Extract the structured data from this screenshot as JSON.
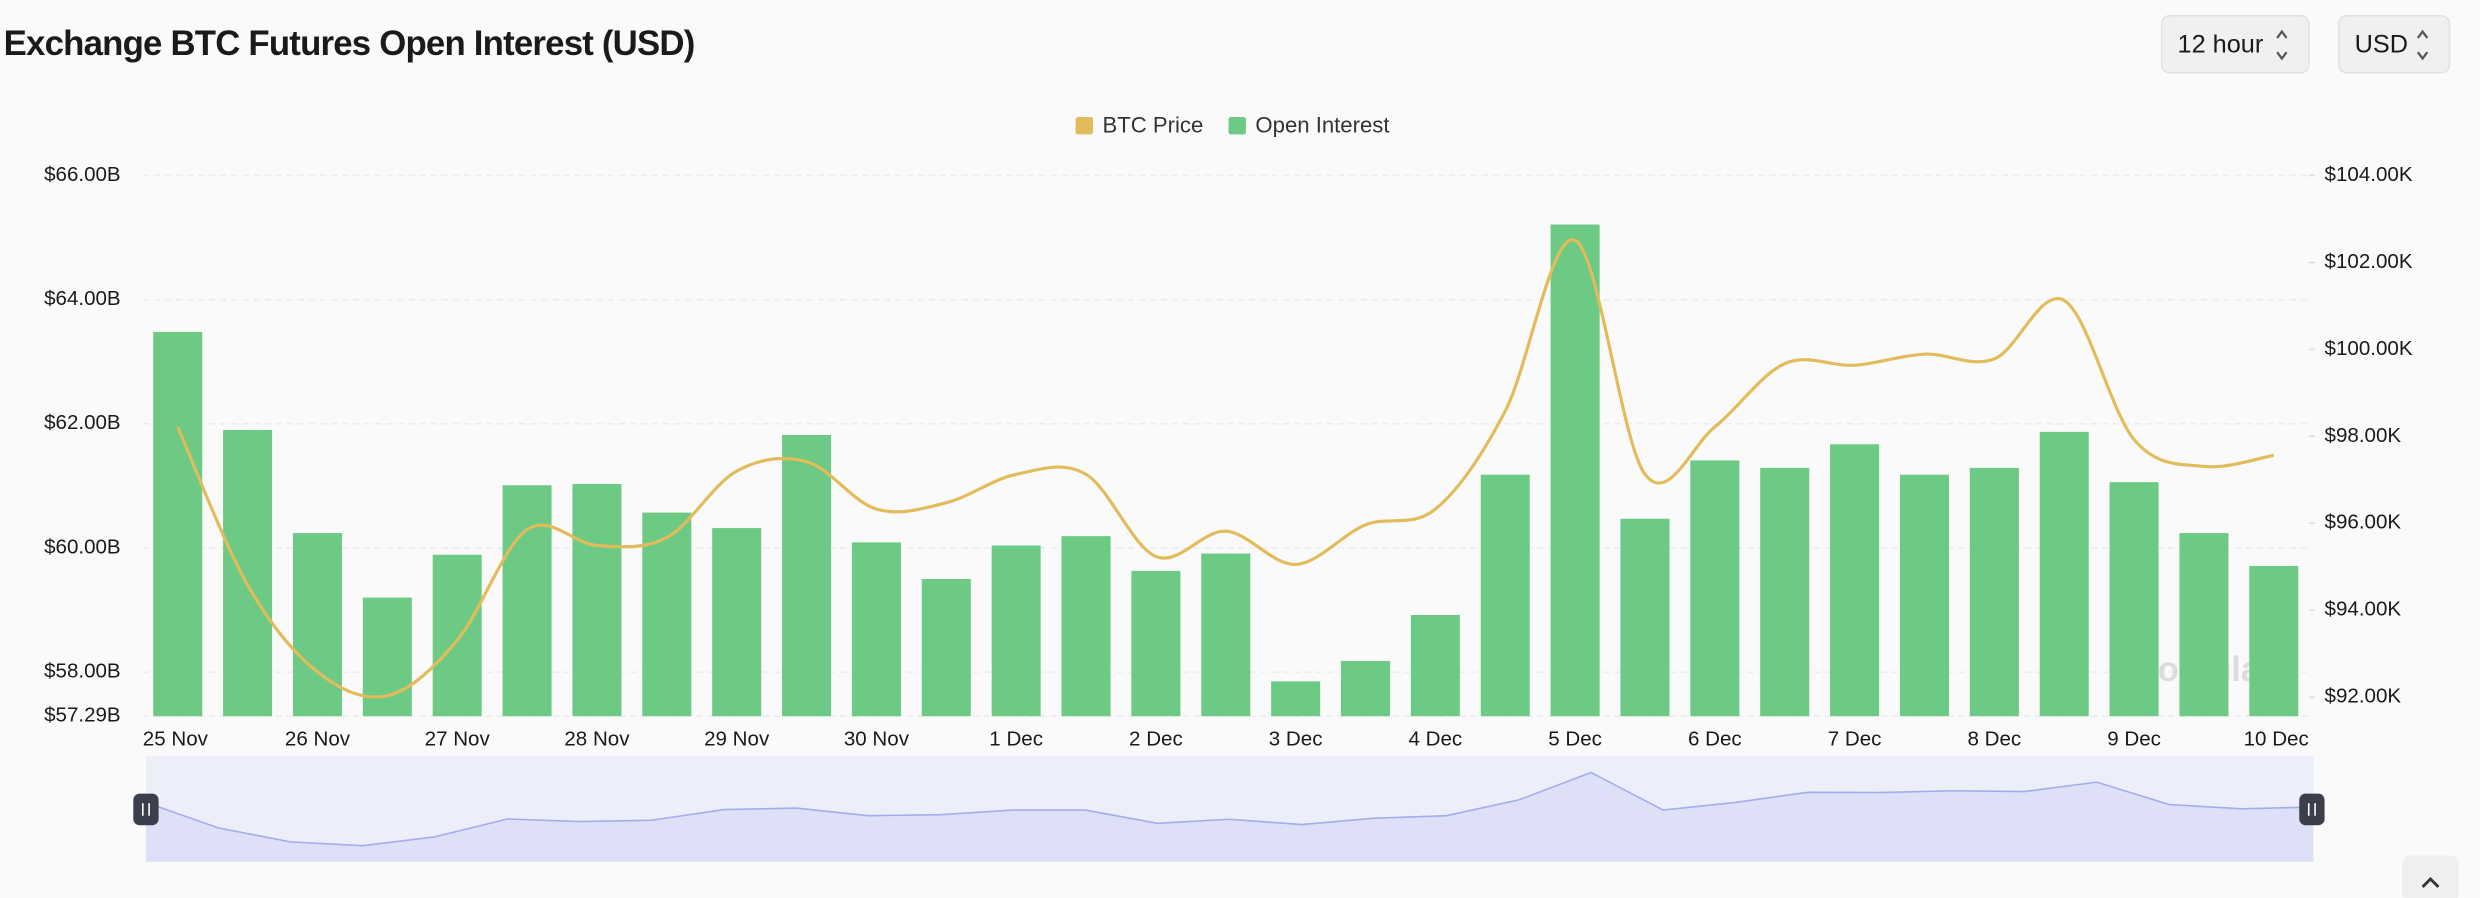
{
  "chart_data": {
    "type": "bar",
    "title": "Exchange BTC Futures Open Interest (USD)",
    "categories": [
      "25 Nov",
      null,
      "26 Nov",
      null,
      "27 Nov",
      null,
      "28 Nov",
      null,
      "29 Nov",
      null,
      "30 Nov",
      null,
      "1 Dec",
      null,
      "2 Dec",
      null,
      "3 Dec",
      null,
      "4 Dec",
      null,
      "5 Dec",
      null,
      "6 Dec",
      null,
      "7 Dec",
      null,
      "8 Dec",
      null,
      "9 Dec",
      null,
      "10 Dec"
    ],
    "series": [
      {
        "name": "BTC Price",
        "type": "line",
        "axis": "y2",
        "color": "#e2bb5a",
        "values": [
          98218,
          94582,
          92582,
          92036,
          93309,
          95855,
          95491,
          95673,
          97200,
          97418,
          96327,
          96473,
          97127,
          97127,
          95236,
          95818,
          95055,
          95964,
          96327,
          98582,
          102509,
          97127,
          98218,
          99673,
          99636,
          99891,
          99782,
          101127,
          97927,
          97309,
          97564
        ]
      },
      {
        "name": "Open Interest",
        "type": "bar",
        "color": "#6cca84",
        "values": [
          63480000000,
          61900000000,
          60240000000,
          59200000000,
          59890000000,
          61010000000,
          61030000000,
          60570000000,
          60320000000,
          61820000000,
          60090000000,
          59500000000,
          60040000000,
          60190000000,
          59630000000,
          59910000000,
          57850000000,
          58180000000,
          58920000000,
          61180000000,
          65210000000,
          60470000000,
          61410000000,
          61290000000,
          61670000000,
          61180000000,
          61290000000,
          61870000000,
          61060000000,
          60240000000,
          59710000000
        ]
      }
    ],
    "ylim": [
      57290000000,
      66000000000
    ],
    "yticks": [
      {
        "value": 57290000000,
        "label": "$57.29B"
      },
      {
        "value": 58000000000,
        "label": "$58.00B"
      },
      {
        "value": 60000000000,
        "label": "$60.00B"
      },
      {
        "value": 62000000000,
        "label": "$62.00B"
      },
      {
        "value": 64000000000,
        "label": "$64.00B"
      },
      {
        "value": 66000000000,
        "label": "$66.00B"
      }
    ],
    "y2lim": [
      91564,
      104000
    ],
    "y2ticks": [
      {
        "value": 92000,
        "label": "$92.00K"
      },
      {
        "value": 94000,
        "label": "$94.00K"
      },
      {
        "value": 96000,
        "label": "$96.00K"
      },
      {
        "value": 98000,
        "label": "$98.00K"
      },
      {
        "value": 100000,
        "label": "$100.00K"
      },
      {
        "value": 102000,
        "label": "$102.00K"
      },
      {
        "value": 104000,
        "label": "$104.00K"
      }
    ],
    "grid": true,
    "legend": "top",
    "watermark": "coinglass"
  },
  "controls": {
    "interval": "12 hour",
    "currency": "USD"
  }
}
